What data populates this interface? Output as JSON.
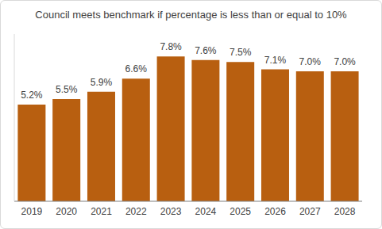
{
  "chart_data": {
    "type": "bar",
    "title": "Council meets benchmark if percentage is less than or equal to 10%",
    "categories": [
      "2019",
      "2020",
      "2021",
      "2022",
      "2023",
      "2024",
      "2025",
      "2026",
      "2027",
      "2028"
    ],
    "values": [
      5.2,
      5.5,
      5.9,
      6.6,
      7.8,
      7.6,
      7.5,
      7.1,
      7.0,
      7.0
    ],
    "value_labels": [
      "5.2%",
      "5.5%",
      "5.9%",
      "6.6%",
      "7.8%",
      "7.6%",
      "7.5%",
      "7.1%",
      "7.0%",
      "7.0%"
    ],
    "color": "#b85f10",
    "ylim": [
      0,
      9
    ],
    "grid": false,
    "data_labels": true,
    "tick_labels": "x"
  }
}
